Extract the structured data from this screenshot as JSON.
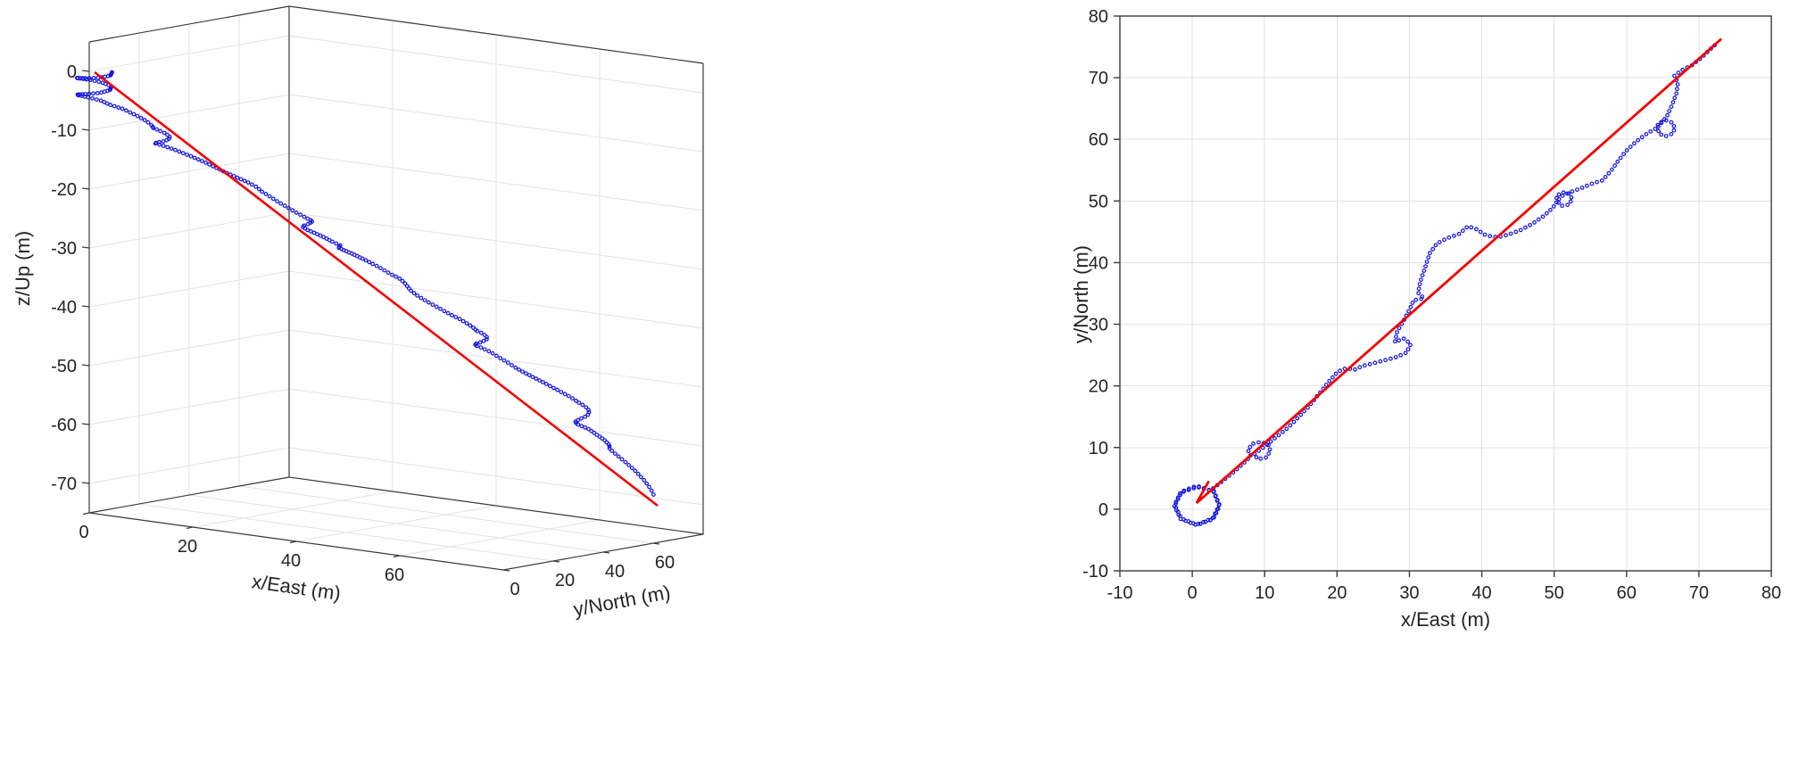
{
  "colors": {
    "trajectory": "#1414dd",
    "reference": "#f40000",
    "grid": "#e2e2e2",
    "axis": "#3a3a3a",
    "text": "#242424",
    "background": "#ffffff"
  },
  "chart_data": {
    "type": "line",
    "series": [
      {
        "name": "trajectory-dotted",
        "color": "#1414dd",
        "marker": "open-circle",
        "points_xyz": [
          [
            3.0,
            2.9,
            0.0
          ],
          [
            3.8,
            0.6,
            -0.3
          ],
          [
            2.9,
            -1.6,
            -0.6
          ],
          [
            0.6,
            -2.6,
            -0.9
          ],
          [
            -1.6,
            -1.6,
            -1.2
          ],
          [
            -2.5,
            0.6,
            -1.5
          ],
          [
            -1.6,
            2.8,
            -1.8
          ],
          [
            0.6,
            3.8,
            -2.1
          ],
          [
            2.9,
            2.9,
            -2.4
          ],
          [
            3.7,
            0.6,
            -2.8
          ],
          [
            2.8,
            -1.5,
            -3.2
          ],
          [
            0.6,
            -2.5,
            -3.6
          ],
          [
            -1.5,
            -1.5,
            -4.0
          ],
          [
            -2.4,
            0.6,
            -4.4
          ],
          [
            -1.5,
            2.7,
            -4.8
          ],
          [
            0.7,
            3.6,
            -5.2
          ],
          [
            2.5,
            3.0,
            -5.6
          ],
          [
            4.2,
            4.6,
            -6.2
          ],
          [
            6.0,
            6.3,
            -7.2
          ],
          [
            7.4,
            7.8,
            -8.2
          ],
          [
            8.1,
            8.6,
            -9.0
          ],
          [
            7.7,
            9.6,
            -9.4
          ],
          [
            8.3,
            10.6,
            -9.8
          ],
          [
            9.4,
            10.9,
            -10.2
          ],
          [
            10.5,
            10.5,
            -10.6
          ],
          [
            10.8,
            9.4,
            -11.0
          ],
          [
            10.2,
            8.4,
            -11.3
          ],
          [
            9.1,
            8.1,
            -11.6
          ],
          [
            8.5,
            8.9,
            -11.9
          ],
          [
            9.8,
            10.0,
            -12.3
          ],
          [
            11.5,
            11.6,
            -13.0
          ],
          [
            13.2,
            13.2,
            -13.8
          ],
          [
            15.0,
            15.3,
            -14.8
          ],
          [
            16.2,
            16.8,
            -15.6
          ],
          [
            17.3,
            18.4,
            -16.4
          ],
          [
            18.8,
            20.6,
            -17.4
          ],
          [
            20.1,
            22.3,
            -18.2
          ],
          [
            21.3,
            22.9,
            -18.8
          ],
          [
            22.4,
            22.6,
            -19.4
          ],
          [
            23.4,
            23.2,
            -20.0
          ],
          [
            24.8,
            23.6,
            -20.8
          ],
          [
            26.4,
            24.1,
            -21.6
          ],
          [
            28.0,
            24.6,
            -22.4
          ],
          [
            29.6,
            25.4,
            -23.2
          ],
          [
            30.2,
            26.8,
            -23.8
          ],
          [
            29.2,
            27.7,
            -24.4
          ],
          [
            28.0,
            27.1,
            -25.0
          ],
          [
            28.3,
            28.8,
            -25.7
          ],
          [
            29.2,
            30.6,
            -26.4
          ],
          [
            30.0,
            32.3,
            -27.1
          ],
          [
            30.6,
            33.9,
            -27.8
          ],
          [
            32.0,
            34.2,
            -28.3
          ],
          [
            31.2,
            35.1,
            -28.8
          ],
          [
            31.5,
            36.9,
            -29.4
          ],
          [
            32.2,
            39.3,
            -30.2
          ],
          [
            32.8,
            41.5,
            -31.0
          ],
          [
            33.8,
            43.1,
            -31.8
          ],
          [
            35.3,
            44.0,
            -32.6
          ],
          [
            36.8,
            44.6,
            -33.4
          ],
          [
            38.1,
            45.9,
            -34.2
          ],
          [
            39.3,
            45.4,
            -34.9
          ],
          [
            40.6,
            44.4,
            -35.6
          ],
          [
            42.2,
            44.1,
            -36.4
          ],
          [
            43.8,
            44.6,
            -37.2
          ],
          [
            45.4,
            45.3,
            -38.0
          ],
          [
            47.0,
            46.3,
            -38.9
          ],
          [
            48.6,
            47.6,
            -39.8
          ],
          [
            49.8,
            48.9,
            -40.7
          ],
          [
            50.4,
            49.9,
            -41.4
          ],
          [
            50.3,
            50.8,
            -41.8
          ],
          [
            51.1,
            51.4,
            -42.2
          ],
          [
            52.1,
            51.2,
            -42.6
          ],
          [
            52.5,
            50.3,
            -43.0
          ],
          [
            52.0,
            49.4,
            -43.4
          ],
          [
            51.0,
            49.2,
            -43.8
          ],
          [
            50.4,
            50.0,
            -44.2
          ],
          [
            51.2,
            50.9,
            -44.6
          ],
          [
            52.6,
            51.6,
            -45.2
          ],
          [
            54.0,
            52.2,
            -46.0
          ],
          [
            55.4,
            52.9,
            -46.8
          ],
          [
            56.6,
            53.3,
            -47.5
          ],
          [
            57.8,
            54.8,
            -48.4
          ],
          [
            58.9,
            56.6,
            -49.3
          ],
          [
            60.1,
            58.3,
            -50.2
          ],
          [
            61.4,
            59.7,
            -51.1
          ],
          [
            62.9,
            61.0,
            -52.0
          ],
          [
            64.1,
            61.8,
            -52.8
          ],
          [
            64.5,
            62.7,
            -53.3
          ],
          [
            65.4,
            63.1,
            -53.8
          ],
          [
            66.3,
            62.7,
            -54.3
          ],
          [
            66.7,
            61.8,
            -54.8
          ],
          [
            66.3,
            60.9,
            -55.3
          ],
          [
            65.4,
            60.5,
            -55.8
          ],
          [
            64.5,
            60.9,
            -56.3
          ],
          [
            64.3,
            61.9,
            -56.8
          ],
          [
            65.6,
            63.8,
            -57.6
          ],
          [
            66.3,
            65.6,
            -58.6
          ],
          [
            66.9,
            67.5,
            -59.6
          ],
          [
            67.1,
            69.2,
            -60.6
          ],
          [
            66.6,
            70.3,
            -61.4
          ],
          [
            67.6,
            71.2,
            -62.4
          ],
          [
            69.0,
            72.0,
            -63.6
          ],
          [
            70.3,
            73.2,
            -65.0
          ],
          [
            71.3,
            74.3,
            -66.4
          ],
          [
            72.1,
            75.2,
            -67.8
          ],
          [
            72.7,
            75.7,
            -69.2
          ]
        ]
      },
      {
        "name": "reference-line",
        "color": "#f40000",
        "style": "solid",
        "points_xyz": [
          [
            0.8,
            0.8,
            -0.2
          ],
          [
            73.0,
            76.0,
            -70.6
          ]
        ],
        "points_xy_2d": [
          [
            2.2,
            4.4
          ],
          [
            0.6,
            1.0
          ],
          [
            73.0,
            76.2
          ]
        ]
      }
    ],
    "plots": [
      {
        "view": "3d",
        "xlabel": "x/East (m)",
        "ylabel": "y/North (m)",
        "zlabel": "z/Up (m)",
        "xlim": [
          0,
          80
        ],
        "ylim": [
          0,
          80
        ],
        "zlim": [
          -75,
          5
        ],
        "xticks": [
          0,
          20,
          40,
          60
        ],
        "yticks": [
          0,
          20,
          40,
          60
        ],
        "zticks": [
          0,
          -10,
          -20,
          -30,
          -40,
          -50,
          -60,
          -70
        ],
        "grid": true,
        "legend": "none",
        "title": ""
      },
      {
        "view": "2d",
        "xlabel": "x/East (m)",
        "ylabel": "y/North (m)",
        "xlim": [
          -10,
          80
        ],
        "ylim": [
          -10,
          80
        ],
        "xticks": [
          -10,
          0,
          10,
          20,
          30,
          40,
          50,
          60,
          70,
          80
        ],
        "yticks": [
          -10,
          0,
          10,
          20,
          30,
          40,
          50,
          60,
          70,
          80
        ],
        "grid": true,
        "legend": "none",
        "title": ""
      }
    ]
  }
}
